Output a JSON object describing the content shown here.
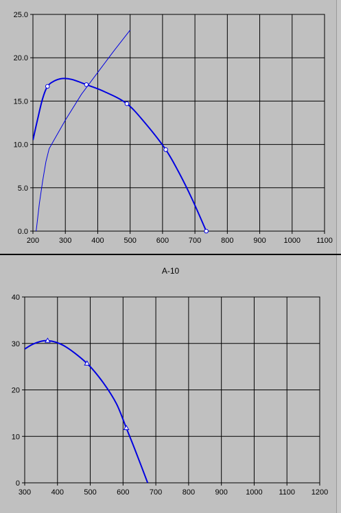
{
  "chart_data": [
    {
      "type": "line",
      "title": "",
      "xlabel": "",
      "ylabel": "",
      "xlim": [
        200,
        1100
      ],
      "ylim": [
        0,
        25
      ],
      "x_ticks": [
        "200",
        "300",
        "400",
        "500",
        "600",
        "700",
        "800",
        "900",
        "1000",
        "1100"
      ],
      "y_ticks": [
        "0.0",
        "5.0",
        "10.0",
        "15.0",
        "20.0",
        "25.0"
      ],
      "grid": true,
      "colors": {
        "line": "#0000e0",
        "plot_bg": "#c0c0c0",
        "grid": "#000000"
      },
      "series": [
        {
          "style": "curve",
          "x": [
            200,
            215,
            230,
            245,
            265,
            290,
            320,
            365,
            420,
            490,
            550,
            610,
            650,
            690,
            735
          ],
          "y": [
            10.5,
            13.0,
            15.3,
            16.7,
            17.3,
            17.6,
            17.5,
            16.9,
            16.1,
            14.7,
            12.3,
            9.4,
            6.8,
            3.8,
            0.0
          ],
          "markers": [
            [
              245,
              16.7
            ],
            [
              365,
              16.9
            ],
            [
              490,
              14.7
            ],
            [
              610,
              9.4
            ],
            [
              735,
              0.0
            ]
          ]
        },
        {
          "style": "thin-line",
          "x": [
            210,
            220,
            230,
            240,
            250,
            265,
            300,
            350,
            400,
            450,
            500
          ],
          "y": [
            0.0,
            3.2,
            5.8,
            8.0,
            9.5,
            10.5,
            12.8,
            15.8,
            18.3,
            20.8,
            23.2
          ],
          "markers": []
        }
      ]
    },
    {
      "type": "line",
      "title": "A-10",
      "xlabel": "",
      "ylabel": "",
      "xlim": [
        300,
        1200
      ],
      "ylim": [
        0,
        40
      ],
      "x_ticks": [
        "300",
        "400",
        "500",
        "600",
        "700",
        "800",
        "900",
        "1000",
        "1100",
        "1200"
      ],
      "y_ticks": [
        "0",
        "10",
        "20",
        "30",
        "40"
      ],
      "grid": true,
      "colors": {
        "line": "#0000e0",
        "plot_bg": "#c0c0c0",
        "grid": "#000000"
      },
      "series": [
        {
          "style": "curve",
          "x": [
            300,
            330,
            370,
            420,
            490,
            540,
            580,
            610,
            640,
            675
          ],
          "y": [
            28.8,
            30.0,
            30.6,
            29.5,
            25.7,
            21.5,
            17.0,
            11.8,
            6.5,
            0.0
          ],
          "markers": [
            [
              370,
              30.6
            ],
            [
              490,
              25.7
            ],
            [
              610,
              11.8
            ]
          ]
        }
      ]
    }
  ]
}
